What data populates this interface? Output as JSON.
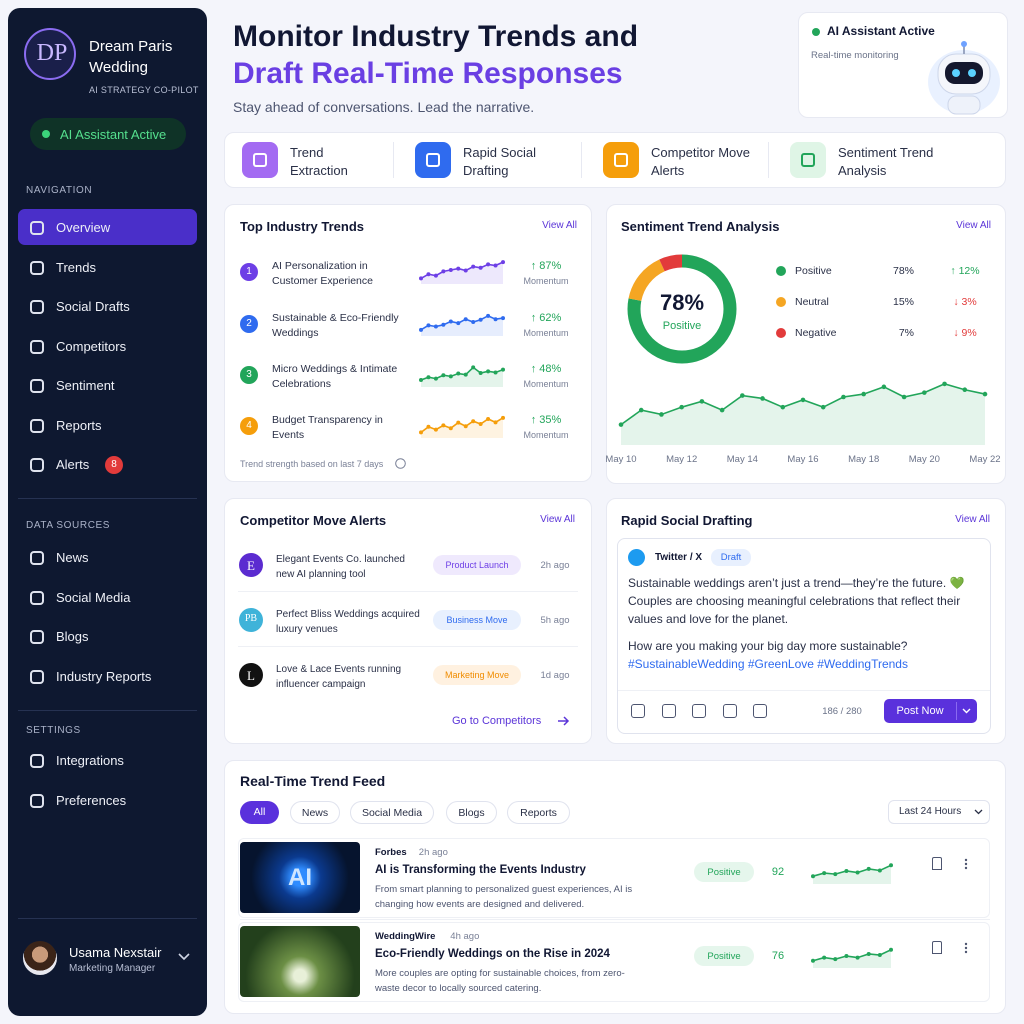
{
  "sidebar": {
    "brand": {
      "initials": "DP",
      "name": "Dream Paris Wedding",
      "tagline": "AI STRATEGY CO-PILOT"
    },
    "status": "AI Assistant Active",
    "sections": [
      {
        "title": "NAVIGATION",
        "items": [
          {
            "label": "Overview",
            "active": true
          },
          {
            "label": "Trends"
          },
          {
            "label": "Social Drafts"
          },
          {
            "label": "Competitors"
          },
          {
            "label": "Sentiment"
          },
          {
            "label": "Reports"
          },
          {
            "label": "Alerts",
            "badge": "8"
          }
        ]
      },
      {
        "title": "DATA SOURCES",
        "items": [
          {
            "label": "News"
          },
          {
            "label": "Social Media"
          },
          {
            "label": "Blogs"
          },
          {
            "label": "Industry Reports"
          }
        ]
      },
      {
        "title": "SETTINGS",
        "items": [
          {
            "label": "Integrations"
          },
          {
            "label": "Preferences"
          }
        ]
      }
    ],
    "user": {
      "name": "Usama Nexstair",
      "role": "Marketing Manager"
    }
  },
  "header": {
    "title_line1": "Monitor Industry Trends and",
    "title_line2": "Draft Real-Time Responses",
    "subtitle": "Stay ahead of conversations. Lead the narrative.",
    "status_card": {
      "title": "AI Assistant Active",
      "subtitle": "Real-time monitoring"
    }
  },
  "features": [
    {
      "label": "Trend Extraction",
      "color": "#a36bf2"
    },
    {
      "label": "Rapid Social Drafting",
      "color": "#2f6bef"
    },
    {
      "label": "Competitor Move Alerts",
      "color": "#f59e0b"
    },
    {
      "label": "Sentiment Trend Analysis",
      "color": "#dff5e6"
    }
  ],
  "top_trends": {
    "title": "Top Industry Trends",
    "link": "View All",
    "spark_range": [
      0,
      100
    ],
    "items": [
      {
        "rank": "1",
        "label": "AI Personalization in Customer Experience",
        "change": "↑ 87%",
        "metric": "Momentum",
        "color": "#6d3fe6",
        "spark": [
          20,
          35,
          30,
          45,
          50,
          55,
          48,
          62,
          58,
          70,
          66,
          78
        ]
      },
      {
        "rank": "2",
        "label": "Sustainable & Eco-Friendly Weddings",
        "change": "↑ 62%",
        "metric": "Momentum",
        "color": "#2f6bef",
        "spark": [
          22,
          38,
          34,
          40,
          52,
          46,
          60,
          50,
          58,
          72,
          60,
          64
        ]
      },
      {
        "rank": "3",
        "label": "Micro Weddings & Intimate Celebrations",
        "change": "↑ 48%",
        "metric": "Momentum",
        "color": "#22a55a",
        "spark": [
          25,
          35,
          30,
          42,
          38,
          48,
          44,
          70,
          50,
          56,
          52,
          62
        ]
      },
      {
        "rank": "4",
        "label": "Budget Transparency in Events",
        "change": "↑ 35%",
        "metric": "Momentum",
        "color": "#f59e0b",
        "spark": [
          20,
          40,
          30,
          45,
          35,
          55,
          42,
          60,
          50,
          68,
          56,
          72
        ]
      }
    ],
    "footnote": "Trend strength based on last 7 days"
  },
  "sentiment": {
    "title": "Sentiment Trend Analysis",
    "link": "View All",
    "center_value": "78%",
    "center_label": "Positive",
    "rows": [
      {
        "name": "Positive",
        "color": "#22a55a",
        "value": 78,
        "value_label": "78%",
        "change": "↑ 12%",
        "change_color": "#22a55a"
      },
      {
        "name": "Neutral",
        "color": "#f5a623",
        "value": 15,
        "value_label": "15%",
        "change": "↓ 3%",
        "change_color": "#e23b3b"
      },
      {
        "name": "Negative",
        "color": "#e23b3b",
        "value": 7,
        "value_label": "7%",
        "change": "↓ 9%",
        "change_color": "#e23b3b"
      }
    ],
    "trend": {
      "x": [
        "May 10",
        null,
        null,
        "May 12",
        null,
        null,
        "May 14",
        null,
        null,
        "May 16",
        null,
        null,
        "May 18",
        null,
        null,
        "May 20",
        null,
        null,
        "May 22"
      ],
      "values": [
        14,
        24,
        21,
        26,
        30,
        24,
        34,
        32,
        26,
        31,
        26,
        33,
        35,
        40,
        33,
        36,
        42,
        38,
        35
      ],
      "ylim": [
        0,
        55
      ],
      "color": "#22a55a"
    }
  },
  "competitors": {
    "title": "Competitor Move Alerts",
    "link": "View All",
    "items": [
      {
        "logo": "E",
        "text": "Elegant Events Co. launched new AI planning tool",
        "tag": "Product Launch",
        "time": "2h ago",
        "logo_bg": "#5b2bd0",
        "logo_fg": "#ffffff",
        "tag_bg": "#efe9fd",
        "tag_fg": "#6d3fe6"
      },
      {
        "logo": "PB",
        "text": "Perfect Bliss Weddings acquired luxury venues",
        "tag": "Business Move",
        "time": "5h ago",
        "logo_bg": "#3fb3d9",
        "logo_fg": "#ffffff",
        "tag_bg": "#e8f0fe",
        "tag_fg": "#2f6bef"
      },
      {
        "logo": "L",
        "text": "Love & Lace Events running influencer campaign",
        "tag": "Marketing Move",
        "time": "1d ago",
        "logo_bg": "#111111",
        "logo_fg": "#ffffff",
        "tag_bg": "#fff1e0",
        "tag_fg": "#f08c00"
      }
    ],
    "cta": "Go to Competitors"
  },
  "drafting": {
    "title": "Rapid Social Drafting",
    "link": "View All",
    "platform": "Twitter / X",
    "status": "Draft",
    "body": "Sustainable weddings aren’t just a trend—they’re the future. 💚 Couples are choosing meaningful celebrations that reflect their values and love for the planet.",
    "question": "How are you making your big day more sustainable?",
    "hashtags": "#SustainableWedding #GreenLove #WeddingTrends",
    "counter": "186 / 280",
    "button": "Post Now"
  },
  "feed": {
    "title": "Real-Time Trend Feed",
    "filters": [
      "All",
      "News",
      "Social Media",
      "Blogs",
      "Reports"
    ],
    "range": "Last 24 Hours",
    "spark_range": [
      0,
      100
    ],
    "items": [
      {
        "thumb_text": "AI",
        "source": "Forbes",
        "time": "2h ago",
        "title": "AI is Transforming the Events Industry",
        "summary": "From smart planning to personalized guest experiences, AI is changing how events are designed and delivered.",
        "sentiment": "Positive",
        "score": 92,
        "spark": [
          30,
          42,
          38,
          50,
          44,
          58,
          52,
          72
        ]
      },
      {
        "source": "WeddingWire",
        "time": "4h ago",
        "title": "Eco-Friendly Weddings on the Rise in 2024",
        "summary": "More couples are opting for sustainable choices, from zero-waste decor to locally sourced catering.",
        "sentiment": "Positive",
        "score": 76,
        "spark": [
          28,
          40,
          34,
          46,
          40,
          54,
          50,
          70
        ]
      }
    ]
  }
}
